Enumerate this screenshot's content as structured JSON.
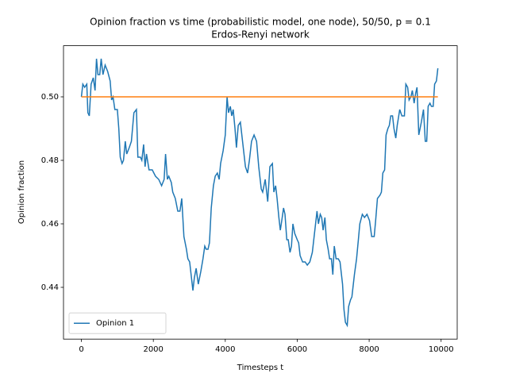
{
  "chart_data": {
    "type": "line",
    "title": "Opinion fraction vs time (probabilistic model, one node), 50/50, p = 0.1",
    "subtitle": "Erdos-Renyi network",
    "x_label": "Timesteps t",
    "y_label": "Opinion fraction",
    "xlim": [
      -497.5,
      10447.5
    ],
    "xticks": [
      0,
      2000,
      4000,
      6000,
      8000,
      10000
    ],
    "ylim": [
      0.4237,
      0.5161
    ],
    "yticks": [
      0.44,
      0.46,
      0.48,
      {
        "value": 0.5,
        "label": "0.50"
      }
    ],
    "legend": "lower left",
    "series": [
      {
        "name": "Opinion 1",
        "color": "#1f77b4",
        "x": [
          0,
          40,
          90,
          150,
          180,
          220,
          270,
          330,
          380,
          420,
          460,
          510,
          550,
          600,
          660,
          730,
          800,
          840,
          880,
          930,
          1000,
          1040,
          1080,
          1130,
          1170,
          1220,
          1260,
          1330,
          1390,
          1460,
          1530,
          1570,
          1640,
          1680,
          1730,
          1770,
          1810,
          1880,
          1970,
          2060,
          2150,
          2230,
          2300,
          2340,
          2390,
          2430,
          2500,
          2540,
          2610,
          2680,
          2740,
          2790,
          2850,
          2920,
          2960,
          3010,
          3050,
          3100,
          3140,
          3190,
          3250,
          3320,
          3380,
          3430,
          3470,
          3520,
          3560,
          3610,
          3670,
          3720,
          3780,
          3830,
          3870,
          3940,
          4000,
          4050,
          4090,
          4140,
          4180,
          4220,
          4270,
          4310,
          4360,
          4420,
          4490,
          4560,
          4620,
          4670,
          4730,
          4800,
          4870,
          4930,
          5000,
          5040,
          5110,
          5180,
          5240,
          5310,
          5350,
          5400,
          5440,
          5490,
          5530,
          5570,
          5620,
          5660,
          5710,
          5750,
          5800,
          5840,
          5880,
          5930,
          6000,
          6040,
          6080,
          6150,
          6220,
          6280,
          6350,
          6420,
          6480,
          6550,
          6590,
          6640,
          6680,
          6720,
          6770,
          6810,
          6860,
          6900,
          6950,
          6990,
          7030,
          7080,
          7140,
          7190,
          7260,
          7300,
          7340,
          7390,
          7430,
          7480,
          7520,
          7590,
          7650,
          7700,
          7740,
          7810,
          7870,
          7940,
          8010,
          8070,
          8140,
          8180,
          8230,
          8300,
          8340,
          8380,
          8430,
          8470,
          8520,
          8560,
          8600,
          8650,
          8690,
          8740,
          8780,
          8850,
          8910,
          8980,
          9020,
          9070,
          9110,
          9160,
          9200,
          9250,
          9290,
          9330,
          9380,
          9450,
          9510,
          9560,
          9600,
          9640,
          9690,
          9730,
          9780,
          9820,
          9870,
          9910
        ],
        "values": [
          0.5,
          0.504,
          0.503,
          0.504,
          0.495,
          0.494,
          0.504,
          0.506,
          0.502,
          0.512,
          0.507,
          0.507,
          0.512,
          0.507,
          0.51,
          0.508,
          0.505,
          0.499,
          0.5,
          0.496,
          0.496,
          0.49,
          0.481,
          0.479,
          0.48,
          0.486,
          0.482,
          0.484,
          0.486,
          0.495,
          0.496,
          0.481,
          0.481,
          0.48,
          0.485,
          0.478,
          0.482,
          0.477,
          0.477,
          0.475,
          0.474,
          0.472,
          0.474,
          0.482,
          0.474,
          0.475,
          0.473,
          0.47,
          0.468,
          0.464,
          0.464,
          0.468,
          0.456,
          0.452,
          0.449,
          0.448,
          0.444,
          0.439,
          0.443,
          0.446,
          0.441,
          0.445,
          0.449,
          0.453,
          0.452,
          0.452,
          0.454,
          0.465,
          0.472,
          0.475,
          0.476,
          0.474,
          0.479,
          0.483,
          0.488,
          0.5,
          0.495,
          0.497,
          0.494,
          0.496,
          0.49,
          0.484,
          0.491,
          0.492,
          0.485,
          0.478,
          0.476,
          0.48,
          0.486,
          0.488,
          0.486,
          0.478,
          0.471,
          0.47,
          0.474,
          0.467,
          0.478,
          0.479,
          0.47,
          0.472,
          0.468,
          0.462,
          0.458,
          0.461,
          0.465,
          0.463,
          0.455,
          0.455,
          0.451,
          0.453,
          0.46,
          0.457,
          0.455,
          0.454,
          0.45,
          0.448,
          0.448,
          0.447,
          0.448,
          0.451,
          0.457,
          0.464,
          0.46,
          0.463,
          0.462,
          0.458,
          0.462,
          0.455,
          0.452,
          0.449,
          0.449,
          0.444,
          0.453,
          0.449,
          0.449,
          0.448,
          0.441,
          0.433,
          0.429,
          0.428,
          0.434,
          0.436,
          0.437,
          0.444,
          0.449,
          0.455,
          0.46,
          0.463,
          0.462,
          0.463,
          0.461,
          0.456,
          0.456,
          0.461,
          0.468,
          0.469,
          0.47,
          0.476,
          0.477,
          0.488,
          0.49,
          0.491,
          0.494,
          0.494,
          0.49,
          0.487,
          0.491,
          0.496,
          0.494,
          0.494,
          0.504,
          0.503,
          0.499,
          0.5,
          0.502,
          0.498,
          0.501,
          0.503,
          0.488,
          0.492,
          0.496,
          0.486,
          0.486,
          0.497,
          0.498,
          0.497,
          0.497,
          0.504,
          0.505,
          0.509
        ]
      },
      {
        "color": "#ff7f0e",
        "x": [
          0,
          9910
        ],
        "values": [
          0.5,
          0.5
        ]
      }
    ]
  }
}
